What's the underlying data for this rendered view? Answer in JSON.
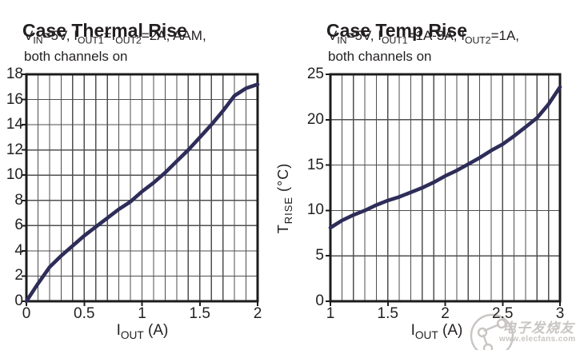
{
  "page": {
    "background": "#ffffff"
  },
  "colors": {
    "curve": "#2e2d59",
    "grid": "#4f4f4f",
    "frame": "#1c1c1c",
    "text": "#231f20",
    "watermark": "#c9c5c2"
  },
  "watermark": {
    "logo_icon": "molecule-circle-logo",
    "text_cn": "电子发烧友",
    "text_url": "www.elecfans.com"
  },
  "chart_data": [
    {
      "type": "line",
      "title": "Case Thermal Rise",
      "conditions_line1": "VIN=5V, IOUT1=IOUT2=2A, AAM,",
      "conditions_line1_parts": [
        {
          "text": "V"
        },
        {
          "text": "IN",
          "sub": true
        },
        {
          "text": "=5V, I"
        },
        {
          "text": "OUT1",
          "sub": true
        },
        {
          "text": "=I"
        },
        {
          "text": "OUT2",
          "sub": true
        },
        {
          "text": "=2A, AAM,"
        }
      ],
      "conditions_line2": "both channels on",
      "xlabel": "IOUT (A)",
      "xlabel_parts": [
        {
          "text": "I"
        },
        {
          "text": "OUT",
          "sub": true
        },
        {
          "text": " (A)"
        }
      ],
      "ylabel": "",
      "grid": "on",
      "x_axis": {
        "min": 0,
        "max": 2,
        "minor_step": 0.1,
        "tick_values": [
          0,
          0.5,
          1,
          1.5,
          2
        ],
        "tick_labels": [
          "0",
          "0.5",
          "1",
          "1.5",
          "2"
        ]
      },
      "y_axis": {
        "min": 0,
        "max": 18,
        "grid_step": 2,
        "tick_labels": [
          "0",
          "2",
          "4",
          "6",
          "8",
          "10",
          "12",
          "14",
          "16",
          "18"
        ]
      },
      "xlim": [
        0,
        2
      ],
      "ylim": [
        0,
        18
      ],
      "series": [
        {
          "name": "case thermal rise (C)",
          "x": [
            0,
            0.1,
            0.2,
            0.3,
            0.4,
            0.5,
            0.6,
            0.7,
            0.8,
            0.9,
            1.0,
            1.1,
            1.2,
            1.3,
            1.4,
            1.5,
            1.6,
            1.7,
            1.8,
            1.9,
            2.0
          ],
          "y": [
            0,
            1.4,
            2.7,
            3.6,
            4.4,
            5.2,
            5.9,
            6.6,
            7.3,
            7.9,
            8.7,
            9.4,
            10.2,
            11.1,
            12.0,
            13.0,
            14.0,
            15.1,
            16.3,
            16.9,
            17.2
          ]
        }
      ]
    },
    {
      "type": "line",
      "title": "Case Temp Rise",
      "conditions_line1": "VIN=5V, IOUT1=1A-3A, IOUT2=1A,",
      "conditions_line1_parts": [
        {
          "text": "V"
        },
        {
          "text": "IN",
          "sub": true
        },
        {
          "text": "=5V, I"
        },
        {
          "text": "OUT1",
          "sub": true
        },
        {
          "text": "=1A-3A, I"
        },
        {
          "text": "OUT2",
          "sub": true
        },
        {
          "text": "=1A,"
        }
      ],
      "conditions_line2": "both channels on",
      "xlabel": "IOUT (A)",
      "xlabel_parts": [
        {
          "text": "I"
        },
        {
          "text": "OUT",
          "sub": true
        },
        {
          "text": " (A)"
        }
      ],
      "ylabel": "TRISE (°C)",
      "ylabel_parts": [
        {
          "text": "T"
        },
        {
          "text": "RISE",
          "sub": true
        },
        {
          "text": " (°C)"
        }
      ],
      "grid": "on",
      "x_axis": {
        "min": 1,
        "max": 3,
        "minor_step": 0.1,
        "tick_values": [
          1,
          1.5,
          2,
          2.5,
          3
        ],
        "tick_labels": [
          "1",
          "1.5",
          "2",
          "2.5",
          "3"
        ]
      },
      "y_axis": {
        "min": 0,
        "max": 25,
        "grid_step": 5,
        "tick_labels": [
          "0",
          "5",
          "10",
          "15",
          "20",
          "25"
        ]
      },
      "xlim": [
        1,
        3
      ],
      "ylim": [
        0,
        25
      ],
      "series": [
        {
          "name": "case temp rise (C)",
          "x": [
            1.0,
            1.1,
            1.2,
            1.3,
            1.4,
            1.5,
            1.6,
            1.7,
            1.8,
            1.9,
            2.0,
            2.1,
            2.2,
            2.3,
            2.4,
            2.5,
            2.6,
            2.7,
            2.8,
            2.9,
            3.0
          ],
          "y": [
            8.1,
            8.9,
            9.5,
            10.0,
            10.6,
            11.1,
            11.5,
            12.0,
            12.5,
            13.1,
            13.8,
            14.4,
            15.1,
            15.8,
            16.6,
            17.3,
            18.2,
            19.2,
            20.2,
            21.7,
            23.6
          ]
        }
      ]
    }
  ]
}
